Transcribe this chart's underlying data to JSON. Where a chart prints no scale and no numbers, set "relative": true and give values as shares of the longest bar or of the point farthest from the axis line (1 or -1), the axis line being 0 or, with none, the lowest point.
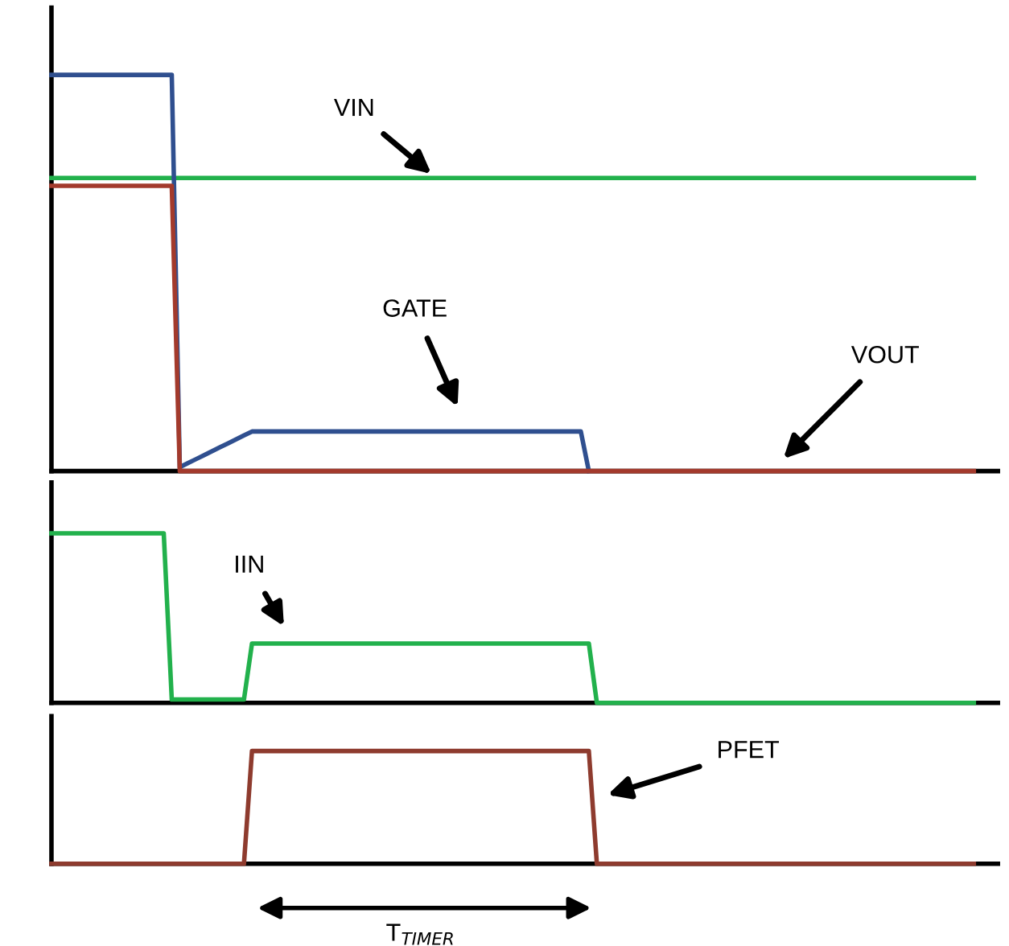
{
  "chart_data": [
    {
      "type": "line",
      "relative": true,
      "categories": [
        null,
        null,
        null,
        null,
        null,
        null,
        null,
        null,
        null,
        null,
        null,
        null,
        null,
        null,
        null,
        null,
        null,
        null,
        null,
        null,
        null,
        null,
        null,
        null,
        null,
        null,
        null,
        null,
        null,
        null,
        null,
        null,
        null,
        null,
        null,
        null,
        null,
        null,
        null,
        null,
        null,
        null,
        null,
        null,
        null,
        null,
        null,
        null,
        null,
        null,
        null,
        null,
        null,
        null,
        null,
        null,
        null,
        null,
        null,
        null,
        null,
        null,
        null,
        null,
        null,
        null,
        null,
        null,
        null,
        null,
        null,
        null,
        null,
        null,
        null,
        null,
        null,
        null,
        null,
        null,
        null,
        null,
        null,
        null,
        null,
        null,
        null,
        null,
        null,
        null,
        null,
        null,
        null,
        null,
        null,
        null,
        null,
        null,
        null,
        null,
        null,
        null,
        null,
        null,
        null,
        null,
        null,
        null,
        null,
        null,
        null,
        null,
        null,
        null,
        null,
        null
      ],
      "series": [
        {
          "color": "#22b14c",
          "values": [
            0.74,
            0.74,
            0.74,
            0.74,
            0.74,
            0.74,
            0.74,
            0.74,
            0.74,
            0.74,
            0.74,
            0.74,
            0.74,
            0.74,
            0.74,
            0.74,
            0.74,
            0.74,
            0.74,
            0.74,
            0.74,
            0.74,
            0.74,
            0.74,
            0.74,
            0.74,
            0.74,
            0.74,
            0.74,
            0.74,
            0.74,
            0.74,
            0.74,
            0.74,
            0.74,
            0.74,
            0.74,
            0.74,
            0.74,
            0.74,
            0.74,
            0.74,
            0.74,
            0.74,
            0.74,
            0.74,
            0.74,
            0.74,
            0.74,
            0.74,
            0.74,
            0.74,
            0.74,
            0.74,
            0.74,
            0.74,
            0.74,
            0.74,
            0.74,
            0.74,
            0.74,
            0.74,
            0.74,
            0.74,
            0.74,
            0.74,
            0.74,
            0.74,
            0.74,
            0.74,
            0.74,
            0.74,
            0.74,
            0.74,
            0.74,
            0.74,
            0.74,
            0.74,
            0.74,
            0.74,
            0.74,
            0.74,
            0.74,
            0.74,
            0.74,
            0.74,
            0.74,
            0.74,
            0.74,
            0.74,
            0.74,
            0.74,
            0.74,
            0.74,
            0.74,
            0.74,
            0.74,
            0.74,
            0.74,
            0.74,
            0.74,
            0.74,
            0.74,
            0.74,
            0.74,
            0.74,
            0.74,
            0.74,
            0.74,
            0.74,
            0.74,
            0.74,
            0.74,
            0.74,
            0.74,
            0.74
          ]
        },
        {
          "color": "#2f4f8f",
          "values": [
            1,
            1,
            1,
            1,
            1,
            1,
            1,
            1,
            1,
            1,
            1,
            1,
            1,
            1,
            1,
            1,
            0.01,
            0.02,
            0.03,
            0.04,
            0.05,
            0.06,
            0.07,
            0.08,
            0.09,
            0.1,
            0.1,
            0.1,
            0.1,
            0.1,
            0.1,
            0.1,
            0.1,
            0.1,
            0.1,
            0.1,
            0.1,
            0.1,
            0.1,
            0.1,
            0.1,
            0.1,
            0.1,
            0.1,
            0.1,
            0.1,
            0.1,
            0.1,
            0.1,
            0.1,
            0.1,
            0.1,
            0.1,
            0.1,
            0.1,
            0.1,
            0.1,
            0.1,
            0.1,
            0.1,
            0.1,
            0.1,
            0.1,
            0.1,
            0.1,
            0.1,
            0.1,
            0,
            null,
            null,
            null,
            null,
            null,
            null,
            null,
            null,
            null,
            null,
            null,
            null,
            null,
            null,
            null,
            null,
            null,
            null,
            null,
            null,
            null,
            null,
            null,
            null,
            null,
            null,
            null,
            null,
            null,
            null,
            null,
            null,
            null,
            null,
            null,
            null,
            null,
            null,
            null,
            null,
            null,
            null,
            null,
            null,
            null,
            null,
            null,
            null
          ]
        },
        {
          "color": "#a33a2c",
          "values": [
            0.72,
            0.72,
            0.72,
            0.72,
            0.72,
            0.72,
            0.72,
            0.72,
            0.72,
            0.72,
            0.72,
            0.72,
            0.72,
            0.72,
            0.72,
            0.72,
            0,
            0,
            0,
            0,
            0,
            0,
            0,
            0,
            0,
            0,
            0,
            0,
            0,
            0,
            0,
            0,
            0,
            0,
            0,
            0,
            0,
            0,
            0,
            0,
            0,
            0,
            0,
            0,
            0,
            0,
            0,
            0,
            0,
            0,
            0,
            0,
            0,
            0,
            0,
            0,
            0,
            0,
            0,
            0,
            0,
            0,
            0,
            0,
            0,
            0,
            0,
            0,
            0,
            0,
            0,
            0,
            0,
            0,
            0,
            0,
            0,
            0,
            0,
            0,
            0,
            0,
            0,
            0,
            0,
            0,
            0,
            0,
            0,
            0,
            0,
            0,
            0,
            0,
            0,
            0,
            0,
            0,
            0,
            0,
            0,
            0,
            0,
            0,
            0,
            0,
            0,
            0,
            0,
            0,
            0,
            0,
            0,
            0,
            0,
            0
          ]
        }
      ],
      "annotations": [
        "VIN",
        "GATE",
        "VOUT"
      ]
    },
    {
      "type": "line",
      "relative": true,
      "categories": [
        null,
        null,
        null,
        null,
        null,
        null,
        null,
        null,
        null,
        null,
        null,
        null,
        null,
        null,
        null,
        null,
        null,
        null,
        null,
        null,
        null,
        null,
        null,
        null,
        null,
        null,
        null,
        null,
        null,
        null,
        null,
        null,
        null,
        null,
        null,
        null,
        null,
        null,
        null,
        null,
        null,
        null,
        null,
        null,
        null,
        null,
        null,
        null,
        null,
        null,
        null,
        null,
        null,
        null,
        null,
        null,
        null,
        null,
        null,
        null,
        null,
        null,
        null,
        null,
        null,
        null,
        null,
        null,
        null,
        null,
        null,
        null,
        null,
        null,
        null,
        null,
        null,
        null,
        null,
        null,
        null,
        null,
        null,
        null,
        null,
        null,
        null,
        null,
        null,
        null,
        null,
        null,
        null,
        null,
        null,
        null,
        null,
        null,
        null,
        null,
        null,
        null,
        null,
        null,
        null,
        null,
        null,
        null,
        null,
        null,
        null,
        null,
        null,
        null,
        null,
        null
      ],
      "series": [
        {
          "color": "#22b14c",
          "values": [
            1,
            1,
            1,
            1,
            1,
            1,
            1,
            1,
            1,
            1,
            1,
            1,
            1,
            1,
            1,
            0.02,
            0.02,
            0.02,
            0.02,
            0.02,
            0.02,
            0.02,
            0.02,
            0.02,
            0.02,
            0.35,
            0.35,
            0.35,
            0.35,
            0.35,
            0.35,
            0.35,
            0.35,
            0.35,
            0.35,
            0.35,
            0.35,
            0.35,
            0.35,
            0.35,
            0.35,
            0.35,
            0.35,
            0.35,
            0.35,
            0.35,
            0.35,
            0.35,
            0.35,
            0.35,
            0.35,
            0.35,
            0.35,
            0.35,
            0.35,
            0.35,
            0.35,
            0.35,
            0.35,
            0.35,
            0.35,
            0.35,
            0.35,
            0.35,
            0.35,
            0.35,
            0.35,
            0.35,
            0,
            0,
            0,
            0,
            0,
            0,
            0,
            0,
            0,
            0,
            0,
            0,
            0,
            0,
            0,
            0,
            0,
            0,
            0,
            0,
            0,
            0,
            0,
            0,
            0,
            0,
            0,
            0,
            0,
            0,
            0,
            0,
            0,
            0,
            0,
            0,
            0,
            0,
            0,
            0,
            0,
            0,
            0,
            0,
            0,
            0,
            0,
            0
          ]
        }
      ],
      "annotations": [
        "IIN"
      ]
    },
    {
      "type": "line",
      "relative": true,
      "categories": [
        null,
        null,
        null,
        null,
        null,
        null,
        null,
        null,
        null,
        null,
        null,
        null,
        null,
        null,
        null,
        null,
        null,
        null,
        null,
        null,
        null,
        null,
        null,
        null,
        null,
        null,
        null,
        null,
        null,
        null,
        null,
        null,
        null,
        null,
        null,
        null,
        null,
        null,
        null,
        null,
        null,
        null,
        null,
        null,
        null,
        null,
        null,
        null,
        null,
        null,
        null,
        null,
        null,
        null,
        null,
        null,
        null,
        null,
        null,
        null,
        null,
        null,
        null,
        null,
        null,
        null,
        null,
        null,
        null,
        null,
        null,
        null,
        null,
        null,
        null,
        null,
        null,
        null,
        null,
        null,
        null,
        null,
        null,
        null,
        null,
        null,
        null,
        null,
        null,
        null,
        null,
        null,
        null,
        null,
        null,
        null,
        null,
        null,
        null,
        null,
        null,
        null,
        null,
        null,
        null,
        null,
        null,
        null,
        null,
        null,
        null,
        null,
        null,
        null,
        null,
        null
      ],
      "series": [
        {
          "color": "#8e3b2e",
          "values": [
            0,
            0,
            0,
            0,
            0,
            0,
            0,
            0,
            0,
            0,
            0,
            0,
            0,
            0,
            0,
            0,
            0,
            0,
            0,
            0,
            0,
            0,
            0,
            0,
            0,
            1,
            1,
            1,
            1,
            1,
            1,
            1,
            1,
            1,
            1,
            1,
            1,
            1,
            1,
            1,
            1,
            1,
            1,
            1,
            1,
            1,
            1,
            1,
            1,
            1,
            1,
            1,
            1,
            1,
            1,
            1,
            1,
            1,
            1,
            1,
            1,
            1,
            1,
            1,
            1,
            1,
            1,
            1,
            0,
            0,
            0,
            0,
            0,
            0,
            0,
            0,
            0,
            0,
            0,
            0,
            0,
            0,
            0,
            0,
            0,
            0,
            0,
            0,
            0,
            0,
            0,
            0,
            0,
            0,
            0,
            0,
            0,
            0,
            0,
            0,
            0,
            0,
            0,
            0,
            0,
            0,
            0,
            0,
            0,
            0,
            0,
            0,
            0,
            0,
            0,
            0
          ]
        }
      ],
      "annotations": [
        "PFET",
        "T$_{TIMER}$"
      ]
    }
  ]
}
